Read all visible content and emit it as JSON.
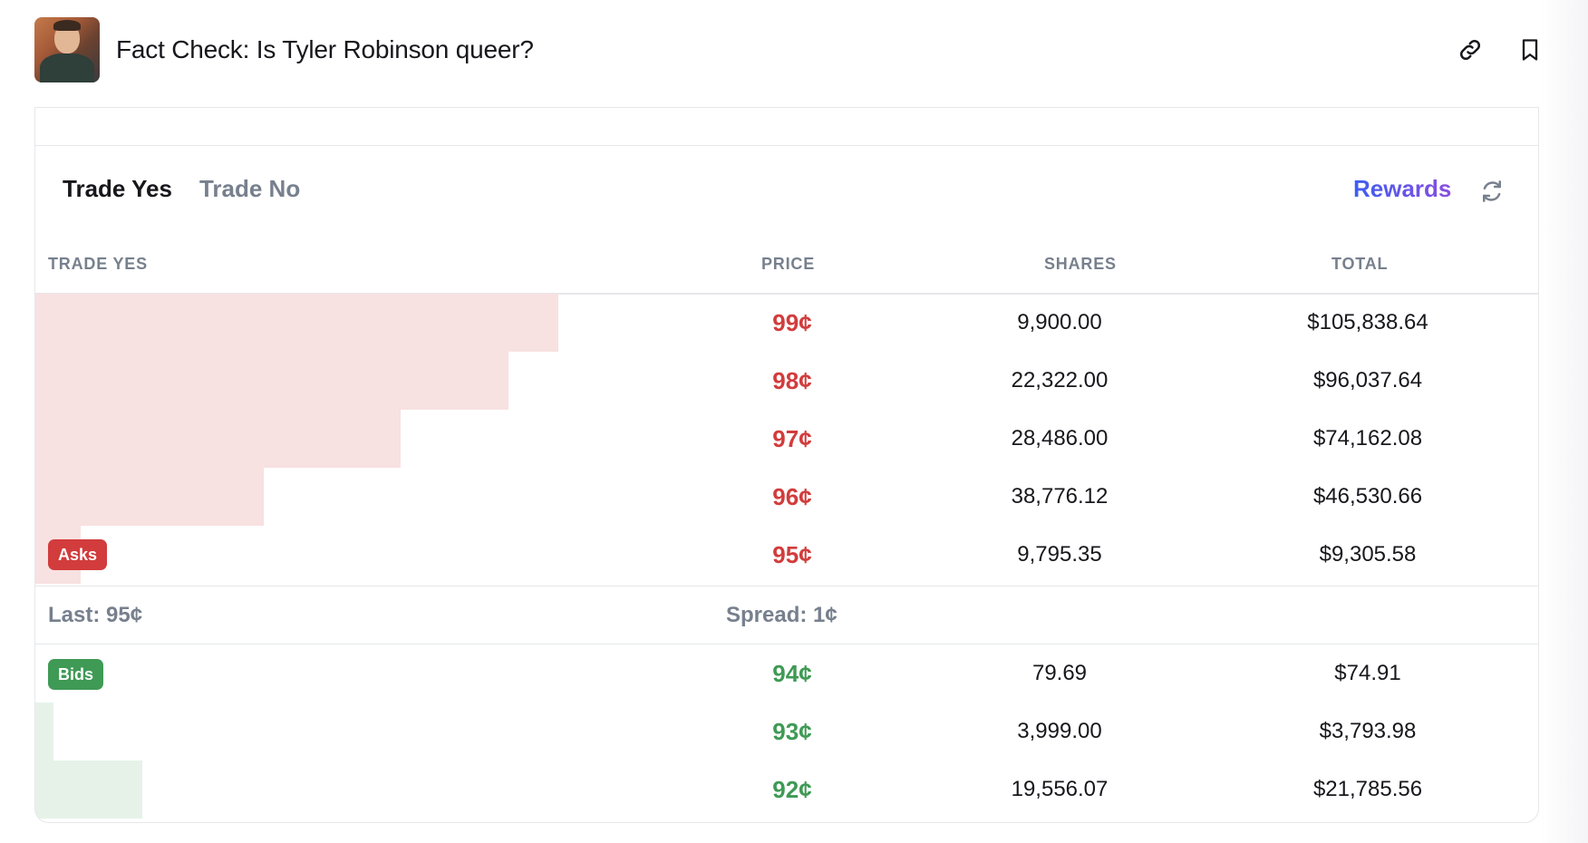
{
  "header": {
    "title": "Fact Check: Is Tyler Robinson queer?",
    "avatar_alt": "market-avatar",
    "link_icon": "link-icon",
    "bookmark_icon": "bookmark-icon"
  },
  "tabs": [
    {
      "label": "Trade Yes",
      "active": true
    },
    {
      "label": "Trade No",
      "active": false
    }
  ],
  "rewards_label": "Rewards",
  "refresh_icon": "refresh-icon",
  "columns": {
    "side": "TRADE YES",
    "price": "PRICE",
    "shares": "SHARES",
    "total": "TOTAL"
  },
  "asks_label": "Asks",
  "bids_label": "Bids",
  "asks": [
    {
      "price": "99¢",
      "shares": "9,900.00",
      "total": "$105,838.64",
      "depth": 0.348
    },
    {
      "price": "98¢",
      "shares": "22,322.00",
      "total": "$96,037.64",
      "depth": 0.315
    },
    {
      "price": "97¢",
      "shares": "28,486.00",
      "total": "$74,162.08",
      "depth": 0.243
    },
    {
      "price": "96¢",
      "shares": "38,776.12",
      "total": "$46,530.66",
      "depth": 0.152
    },
    {
      "price": "95¢",
      "shares": "9,795.35",
      "total": "$9,305.58",
      "depth": 0.03
    }
  ],
  "last": "Last: 95¢",
  "spread": "Spread: 1¢",
  "bids": [
    {
      "price": "94¢",
      "shares": "79.69",
      "total": "$74.91",
      "depth": 0.0
    },
    {
      "price": "93¢",
      "shares": "3,999.00",
      "total": "$3,793.98",
      "depth": 0.012
    },
    {
      "price": "92¢",
      "shares": "19,556.07",
      "total": "$21,785.56",
      "depth": 0.071
    }
  ],
  "colors": {
    "ask": "#d23c3c",
    "bid": "#3f9a55",
    "ask_depth": "#f8e1e1",
    "bid_depth": "#e6f2e8",
    "rewards_gradient": [
      "#3d5ef0",
      "#8a4de0"
    ]
  }
}
